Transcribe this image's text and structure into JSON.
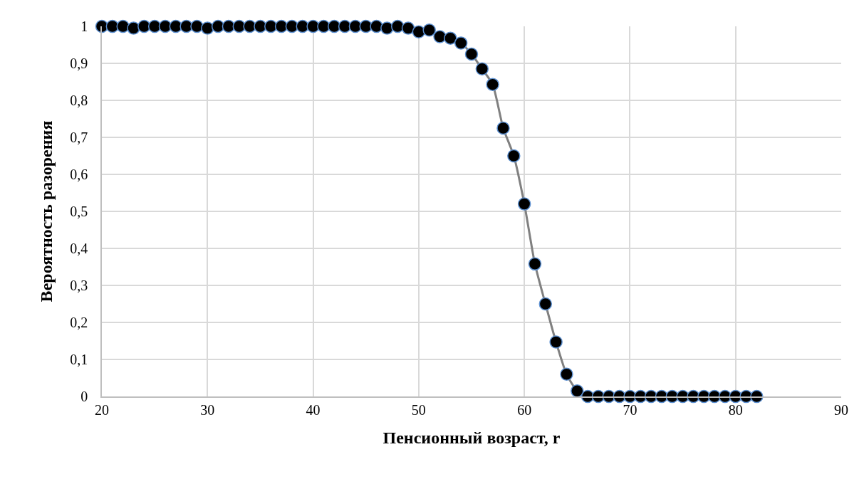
{
  "chart_data": {
    "type": "line",
    "xlabel": "Пенсионный возраст, r",
    "ylabel": "Вероятность разорения",
    "x": [
      20,
      21,
      22,
      23,
      24,
      25,
      26,
      27,
      28,
      29,
      30,
      31,
      32,
      33,
      34,
      35,
      36,
      37,
      38,
      39,
      40,
      41,
      42,
      43,
      44,
      45,
      46,
      47,
      48,
      49,
      50,
      51,
      52,
      53,
      54,
      55,
      56,
      57,
      58,
      59,
      60,
      61,
      62,
      63,
      64,
      65,
      66,
      67,
      68,
      69,
      70,
      71,
      72,
      73,
      74,
      75,
      76,
      77,
      78,
      79,
      80,
      81,
      82
    ],
    "series": [
      {
        "color": "#808080",
        "values": [
          1,
          1,
          1,
          0.995,
          1,
          1,
          1,
          1,
          1,
          1,
          0.995,
          1,
          1,
          1,
          1,
          1,
          1,
          1,
          1,
          1,
          1,
          1,
          1,
          1,
          1,
          1,
          1,
          0.995,
          1,
          0.995,
          0.985,
          0.99,
          0.972,
          0.968,
          0.955,
          0.925,
          0.885,
          0.843,
          0.725,
          0.65,
          0.52,
          0.358,
          0.25,
          0.147,
          0.06,
          0.015,
          0,
          0,
          0,
          0,
          0,
          0,
          0,
          0,
          0,
          0,
          0,
          0,
          0,
          0,
          0,
          0,
          0
        ]
      }
    ],
    "xlim": [
      20,
      90
    ],
    "xticks": [
      20,
      30,
      40,
      50,
      60,
      70,
      80,
      90
    ],
    "ylim": [
      0,
      1
    ],
    "yticks": [
      {
        "value": 0,
        "label": "0"
      },
      {
        "value": 0.1,
        "label": "0,1"
      },
      {
        "value": 0.2,
        "label": "0,2"
      },
      {
        "value": 0.3,
        "label": "0,3"
      },
      {
        "value": 0.4,
        "label": "0,4"
      },
      {
        "value": 0.5,
        "label": "0,5"
      },
      {
        "value": 0.6,
        "label": "0,6"
      },
      {
        "value": 0.7,
        "label": "0,7"
      },
      {
        "value": 0.8,
        "label": "0,8"
      },
      {
        "value": 0.9,
        "label": "0,9"
      },
      {
        "value": 1,
        "label": "1"
      }
    ],
    "grid": true,
    "legend": false,
    "marker": "circle",
    "line_style": "solid"
  }
}
